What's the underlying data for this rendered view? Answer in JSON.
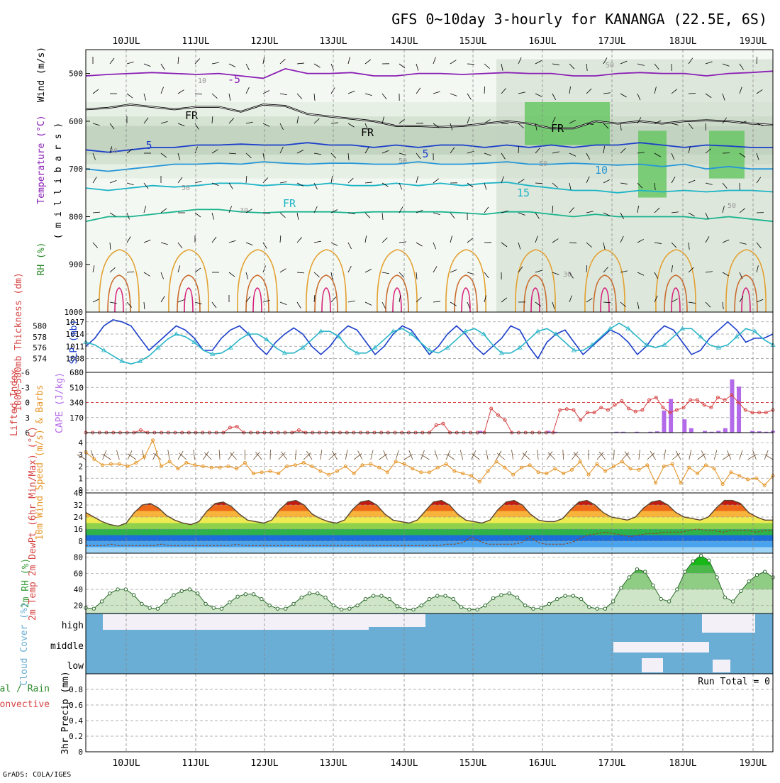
{
  "title": "GFS 0~10day 3-hourly for KANANGA (22.5E, 6S)",
  "footer": "GrADS: COLA/IGES",
  "dates": [
    "10JUL",
    "11JUL",
    "12JUL",
    "13JUL",
    "14JUL",
    "15JUL",
    "16JUL",
    "17JUL",
    "18JUL",
    "19JUL"
  ],
  "colors": {
    "line_blue": "#1a3ecb",
    "line_cyan": "#2ab5c8",
    "cape": "#b36ae8",
    "li": "#d64545",
    "wind": "#e6962a",
    "rh": "#3d9d3d",
    "cloud": "#6aaed6"
  },
  "chart_data": [
    {
      "type": "heatmap",
      "name": "upper-air",
      "ylabel_parts": [
        "Wind (m/s)",
        "Temperature (°C)",
        "RH (%)"
      ],
      "yunit": "( m i l l i b a r s )",
      "yticks": [
        "500",
        "600",
        "700",
        "800",
        "900",
        "1000"
      ],
      "ylim": [
        450,
        1000
      ],
      "contour_labels": [
        "-5",
        "5",
        "5",
        "10",
        "15",
        "FR",
        "FR",
        "FR",
        "FR",
        "10",
        "30",
        "30",
        "50",
        "50",
        "50",
        "30",
        "50",
        "50"
      ],
      "isotherms": [
        {
          "level": -5,
          "p": [
            505,
            502,
            500,
            498,
            500,
            502,
            500,
            505,
            510,
            490,
            500,
            500,
            498,
            505,
            505,
            500,
            500,
            502,
            500,
            498,
            500,
            500,
            505,
            505,
            500,
            498,
            500,
            500,
            505,
            500,
            498,
            495
          ]
        },
        {
          "level": 5,
          "p": [
            660,
            665,
            660,
            655,
            655,
            650,
            650,
            648,
            650,
            650,
            645,
            650,
            650,
            655,
            650,
            655,
            650,
            650,
            655,
            650,
            655,
            650,
            655,
            650,
            650,
            645,
            650,
            655,
            650,
            652,
            655,
            655
          ]
        },
        {
          "level": 10,
          "p": [
            700,
            705,
            700,
            695,
            690,
            690,
            688,
            690,
            685,
            688,
            690,
            688,
            688,
            690,
            690,
            685,
            690,
            690,
            688,
            685,
            690,
            690,
            688,
            690,
            692,
            690,
            695,
            690,
            700,
            695,
            700,
            700
          ]
        },
        {
          "level": 15,
          "p": [
            740,
            745,
            740,
            735,
            738,
            735,
            730,
            730,
            735,
            732,
            735,
            730,
            735,
            735,
            730,
            735,
            730,
            735,
            730,
            728,
            735,
            740,
            745,
            745,
            750,
            745,
            748,
            745,
            748,
            745,
            745,
            748
          ]
        },
        {
          "level": 20,
          "p": [
            810,
            800,
            800,
            795,
            790,
            785,
            785,
            790,
            792,
            790,
            790,
            790,
            792,
            790,
            790,
            790,
            790,
            792,
            795,
            790,
            790,
            795,
            800,
            795,
            800,
            800,
            800,
            800,
            805,
            800,
            805,
            810
          ]
        },
        {
          "level": 0,
          "p": [
            575,
            572,
            565,
            570,
            575,
            570,
            570,
            580,
            565,
            568,
            585,
            590,
            595,
            600,
            610,
            610,
            612,
            610,
            605,
            600,
            605,
            615,
            615,
            600,
            605,
            600,
            605,
            600,
            598,
            600,
            605,
            608
          ]
        }
      ]
    },
    {
      "type": "line",
      "name": "thickness-slp",
      "ylabel_left": "1000~500mb Thickness (dm)",
      "ylabel_right": "SLP (mb)",
      "left_ticks": [
        "580",
        "578",
        "576",
        "574"
      ],
      "right_ticks": [
        "1017",
        "1014",
        "1011",
        "1008"
      ],
      "ylim_slp": [
        1006,
        1018
      ],
      "ylim_thk": [
        572.5,
        581.5
      ],
      "series": [
        {
          "name": "SLP",
          "values": [
            1011,
            1013,
            1016,
            1017.5,
            1017,
            1016,
            1013,
            1010,
            1012,
            1014,
            1016,
            1015,
            1013,
            1010,
            1010,
            1013,
            1015,
            1016,
            1014,
            1011,
            1009,
            1012,
            1014,
            1015.5,
            1014,
            1011,
            1009,
            1011,
            1014,
            1016,
            1015,
            1012,
            1009,
            1011,
            1014,
            1016,
            1015,
            1012,
            1009,
            1011,
            1014,
            1016,
            1014,
            1011,
            1009,
            1011,
            1013,
            1016,
            1015,
            1011,
            1008,
            1012,
            1014,
            1015,
            1012,
            1009,
            1011,
            1013,
            1015,
            1014,
            1012,
            1009,
            1011,
            1014,
            1016,
            1015,
            1012,
            1009,
            1010,
            1013,
            1015,
            1017,
            1015,
            1012,
            1013,
            1013,
            1014
          ]
        },
        {
          "name": "Thickness",
          "values": [
            577,
            576.5,
            575.5,
            574.5,
            573.5,
            573,
            573.5,
            574.5,
            576,
            577.5,
            578.5,
            578,
            577,
            575.5,
            574.8,
            575,
            576,
            577.5,
            578.5,
            578.5,
            577.5,
            576,
            575,
            575,
            576,
            577.5,
            579,
            579,
            578,
            576,
            575,
            575,
            576,
            577.5,
            579,
            579.5,
            578.5,
            577,
            575.5,
            575,
            576,
            577.5,
            579,
            579.5,
            578.5,
            576.5,
            575,
            575,
            576,
            577.5,
            579,
            579.5,
            578.5,
            577,
            575.5,
            575.5,
            576.5,
            578,
            579.5,
            580.5,
            579.5,
            578,
            576.5,
            576,
            576.5,
            578,
            579.5,
            579.5,
            578,
            576.5,
            576,
            576.5,
            578,
            579.5,
            579,
            577.5,
            576.5
          ]
        }
      ]
    },
    {
      "type": "bar",
      "name": "cape-li",
      "ylabel_left": "Lifted Index",
      "ylabel_right": "CAPE (J/kg)",
      "left_ticks": [
        "-6",
        "-3",
        "0",
        "3",
        "6"
      ],
      "right_ticks": [
        "680",
        "510",
        "340",
        "170"
      ],
      "ylim_li": [
        -6,
        6
      ],
      "ylim_cape": [
        0,
        680
      ],
      "series": [
        {
          "name": "CAPE",
          "values": [
            0,
            0,
            0,
            0,
            0,
            0,
            0,
            0,
            0,
            0,
            0,
            0,
            0,
            0,
            0,
            0,
            0,
            0,
            0,
            0,
            0,
            0,
            0,
            0,
            0,
            0,
            0,
            0,
            0,
            0,
            0,
            0,
            0,
            0,
            0,
            0,
            0,
            0,
            0,
            0,
            0,
            0,
            0,
            0,
            0,
            0,
            0,
            0,
            0,
            0,
            0,
            0,
            0,
            0,
            0,
            0,
            0,
            0,
            20,
            0,
            0,
            0,
            0,
            0,
            0,
            0,
            0,
            0,
            20,
            10,
            0,
            0,
            0,
            0,
            0,
            0,
            0
          ]
        },
        {
          "name": "LI",
          "values": [
            6,
            6,
            6,
            6,
            6,
            6,
            6,
            6,
            5.5,
            6,
            6,
            6,
            6,
            6,
            6,
            6,
            6,
            6,
            6,
            6,
            6,
            5,
            4.8,
            6,
            6,
            6,
            6,
            6,
            6,
            6,
            6,
            5.5,
            6,
            6,
            6,
            6,
            6,
            6,
            6,
            6,
            6,
            6,
            6,
            6,
            6,
            6,
            6,
            6,
            6,
            6,
            6,
            4.5,
            4.2,
            6,
            6,
            6,
            6,
            6,
            6,
            1.2,
            2.5,
            3.5,
            6,
            6,
            6,
            6,
            6,
            6,
            6,
            1.5,
            1.3,
            1.5,
            3.5,
            2,
            2,
            1
          ]
        },
        {
          "name": "CAPE_tail",
          "values": [
            0,
            10,
            10,
            0,
            10,
            0,
            10,
            15,
            250,
            380,
            0,
            150,
            50,
            0,
            20,
            10,
            20,
            50,
            600,
            520,
            0,
            20,
            15,
            10,
            20
          ]
        },
        {
          "name": "LI_tail",
          "values": [
            1.5,
            0.5,
            -0.3,
            1.2,
            1.8,
            1.5,
            -0.5,
            -1,
            1,
            2,
            1.5,
            1,
            -0.5,
            -0.5,
            0.5,
            1,
            -1,
            -0.5,
            -1.5,
            0,
            1.5,
            2,
            2,
            2,
            1.5
          ]
        }
      ]
    },
    {
      "type": "line",
      "name": "wind10m",
      "ylabel": "10m Wind Speed (m/s) & Barbs",
      "yticks": [
        "4",
        "3",
        "2",
        "1",
        "0"
      ],
      "ylim": [
        0,
        4.6
      ],
      "series": [
        {
          "name": "Speed",
          "values": [
            3.2,
            2.6,
            2.1,
            2.2,
            2.2,
            2.0,
            2.3,
            2.8,
            4.2,
            2.0,
            2.4,
            1.8,
            2.3,
            2.1,
            2.0,
            1.9,
            1.9,
            2.0,
            1.8,
            2.3,
            1.4,
            1.5,
            1.6,
            1.4,
            2.0,
            2.1,
            2.3,
            2.0,
            1.6,
            1.3,
            1.6,
            2.0,
            1.4,
            2.1,
            2.2,
            1.9,
            1.5,
            2.4,
            2.2,
            1.8,
            1.5,
            1.5,
            1.9,
            2.2,
            1.6,
            1.4,
            1.2,
            0.7,
            1.6,
            2.4,
            1.9,
            1.3,
            1.9,
            2.1,
            1.5,
            1.4,
            1.8,
            1.4,
            1.7,
            2.4,
            1.3,
            2.2,
            1.6,
            2.0,
            2.4,
            1.8,
            1.7,
            2.1,
            0.6,
            2.0,
            2.2,
            0.6,
            1.9,
            1.4,
            2.1,
            1.8,
            0.5,
            1.5,
            1.2,
            0.9,
            1.0,
            0.4,
            1.2
          ]
        }
      ]
    },
    {
      "type": "area",
      "name": "temp2m",
      "ylabel": "2m Temp 2m DewPt (6hr Min/Max) (°C)",
      "yticks": [
        "40",
        "32",
        "24",
        "16",
        "8"
      ],
      "ylim": [
        0,
        40
      ],
      "series": [
        {
          "name": "Temp",
          "values": [
            27,
            24,
            21,
            19,
            18,
            20,
            27,
            32,
            33,
            30,
            25,
            22,
            20,
            19,
            21,
            28,
            33,
            34,
            31,
            26,
            22,
            21,
            20,
            22,
            29,
            34,
            35,
            32,
            26,
            23,
            21,
            20,
            22,
            29,
            34,
            35,
            32,
            26,
            22,
            21,
            20,
            22,
            28,
            34,
            35,
            32,
            26,
            22,
            21,
            20,
            22,
            29,
            34,
            35,
            32,
            26,
            22,
            21,
            21,
            23,
            29,
            34,
            35,
            32,
            27,
            24,
            23,
            22,
            24,
            30,
            34,
            35,
            32,
            27,
            24,
            23,
            22,
            24,
            30,
            35,
            35,
            33,
            27,
            24,
            22,
            22
          ]
        },
        {
          "name": "DewPt",
          "values": [
            5,
            5,
            5,
            6,
            5,
            5,
            5,
            5,
            5,
            6,
            5,
            5,
            5,
            5,
            5,
            5,
            5,
            5,
            6,
            5,
            5,
            5,
            5,
            5,
            5,
            5,
            5,
            5,
            5,
            5,
            5,
            5,
            5,
            5,
            5,
            5,
            5,
            5,
            5,
            5,
            5,
            5,
            5,
            6,
            6,
            7,
            11,
            8,
            6,
            6,
            6,
            6,
            7,
            11,
            7,
            6,
            6,
            6,
            7,
            10,
            12,
            13,
            14,
            13,
            12,
            11,
            12,
            13,
            13,
            14,
            14,
            14,
            15,
            16,
            15,
            15,
            14,
            15,
            15,
            15,
            14,
            15,
            15
          ]
        }
      ]
    },
    {
      "type": "area",
      "name": "rh2m",
      "ylabel": "2m RH (%)",
      "yticks": [
        "80",
        "60",
        "40",
        "20"
      ],
      "ylim": [
        10,
        85
      ],
      "series": [
        {
          "name": "RH",
          "values": [
            17,
            16,
            25,
            35,
            40,
            40,
            33,
            22,
            17,
            16,
            25,
            33,
            38,
            40,
            35,
            22,
            17,
            16,
            24,
            31,
            34,
            34,
            28,
            20,
            16,
            16,
            22,
            30,
            35,
            35,
            30,
            20,
            15,
            16,
            20,
            28,
            32,
            32,
            28,
            19,
            15,
            15,
            20,
            28,
            32,
            32,
            28,
            18,
            15,
            15,
            20,
            29,
            33,
            35,
            30,
            20,
            16,
            17,
            22,
            28,
            32,
            32,
            28,
            18,
            16,
            16,
            25,
            42,
            55,
            65,
            62,
            45,
            28,
            25,
            40,
            62,
            75,
            82,
            76,
            55,
            30,
            25,
            38,
            50,
            58,
            62,
            55
          ]
        }
      ]
    },
    {
      "type": "heatmap",
      "name": "cloud",
      "ylabel": "Cloud Cover (%)",
      "yticks": [
        "high",
        "middle",
        "low"
      ]
    },
    {
      "type": "bar",
      "name": "precip",
      "ylabel": "3hr Precip (mm)",
      "ylabel_side": [
        "Total / Rain",
        "Convective"
      ],
      "yticks": [
        "0.8",
        "0.6",
        "0.4",
        "0.2",
        "0"
      ],
      "ylim": [
        0,
        1
      ],
      "run_total": "Run Total = 0",
      "values": []
    }
  ]
}
